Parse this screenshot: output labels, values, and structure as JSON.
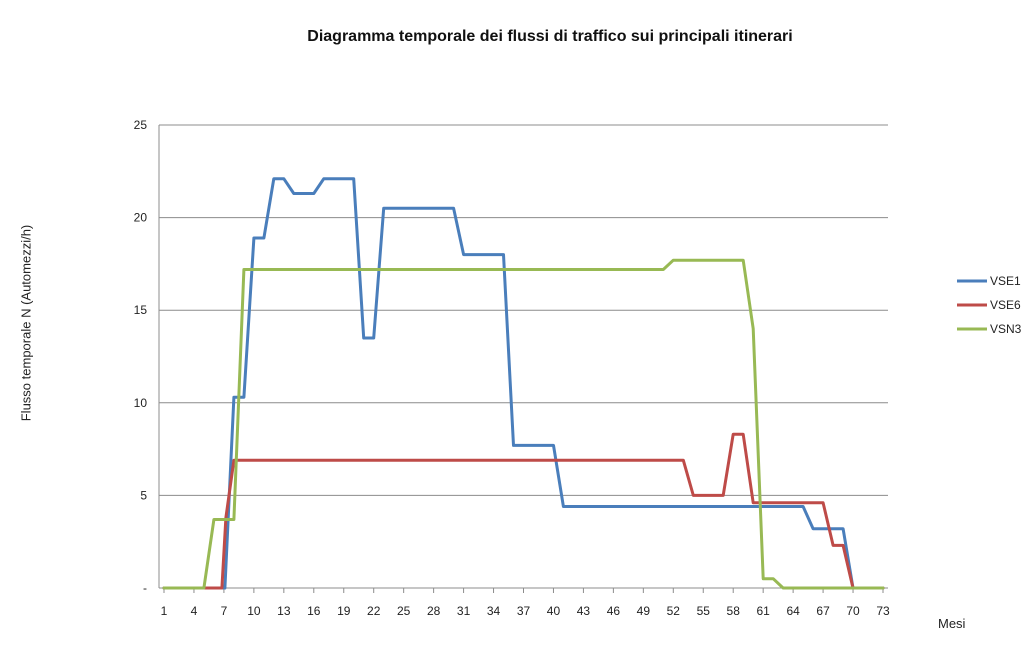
{
  "chart_data": {
    "type": "line",
    "title": "Diagramma temporale dei flussi di traffico sui principali itinerari",
    "xlabel": "Mesi",
    "ylabel": "Flusso temporale  N (Automezzi/h)",
    "xlim": [
      1,
      73
    ],
    "ylim": [
      0,
      25
    ],
    "x_tick_labels": [
      "1",
      "4",
      "7",
      "10",
      "13",
      "16",
      "19",
      "22",
      "25",
      "28",
      "31",
      "34",
      "37",
      "40",
      "43",
      "46",
      "49",
      "52",
      "55",
      "58",
      "61",
      "64",
      "67",
      "70",
      "73"
    ],
    "y_tick_labels": [
      "-",
      "5",
      "10",
      "15",
      "20",
      "25"
    ],
    "y_tick_values": [
      0,
      5,
      10,
      15,
      20,
      25
    ],
    "grid": "horizontal",
    "legend_position": "right",
    "series": [
      {
        "name": "VSE1",
        "color": "#4a7ebb",
        "points": [
          [
            1,
            0
          ],
          [
            7,
            0
          ],
          [
            7.1,
            0
          ],
          [
            8,
            10.3
          ],
          [
            9,
            10.3
          ],
          [
            10,
            18.9
          ],
          [
            11,
            18.9
          ],
          [
            12,
            22.1
          ],
          [
            13,
            22.1
          ],
          [
            14,
            21.3
          ],
          [
            16,
            21.3
          ],
          [
            17,
            22.1
          ],
          [
            20,
            22.1
          ],
          [
            21,
            13.5
          ],
          [
            22,
            13.5
          ],
          [
            23,
            20.5
          ],
          [
            30,
            20.5
          ],
          [
            31,
            18.0
          ],
          [
            35,
            18.0
          ],
          [
            36,
            7.7
          ],
          [
            40,
            7.7
          ],
          [
            41,
            4.4
          ],
          [
            65,
            4.4
          ],
          [
            66,
            3.2
          ],
          [
            69,
            3.2
          ],
          [
            70,
            0
          ],
          [
            73,
            0
          ]
        ]
      },
      {
        "name": "VSE6",
        "color": "#be4b48",
        "points": [
          [
            1,
            0
          ],
          [
            6.8,
            0
          ],
          [
            7.2,
            3.8
          ],
          [
            8,
            6.9
          ],
          [
            53,
            6.9
          ],
          [
            54,
            5.0
          ],
          [
            57,
            5.0
          ],
          [
            58,
            8.3
          ],
          [
            59,
            8.3
          ],
          [
            60,
            4.6
          ],
          [
            67,
            4.6
          ],
          [
            68,
            2.3
          ],
          [
            69,
            2.3
          ],
          [
            70,
            0
          ],
          [
            73,
            0
          ]
        ]
      },
      {
        "name": "VSN3",
        "color": "#98b954",
        "points": [
          [
            1,
            0
          ],
          [
            5,
            0
          ],
          [
            6,
            3.7
          ],
          [
            8,
            3.7
          ],
          [
            9,
            17.2
          ],
          [
            51,
            17.2
          ],
          [
            52,
            17.7
          ],
          [
            59,
            17.7
          ],
          [
            60,
            14.0
          ],
          [
            61,
            0.5
          ],
          [
            62,
            0.5
          ],
          [
            63,
            0
          ],
          [
            73,
            0
          ]
        ]
      }
    ]
  }
}
